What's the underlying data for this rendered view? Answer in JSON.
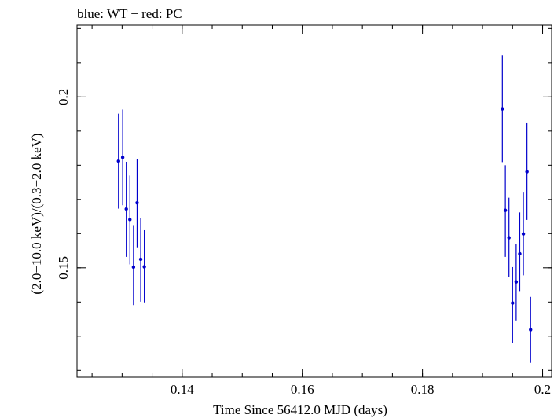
{
  "chart_data": {
    "type": "scatter",
    "title": "blue: WT − red: PC",
    "xlabel": "Time Since 56412.0 MJD (days)",
    "ylabel": "(2.0−10.0 keV)/(0.3−2.0 keV)",
    "xlim": [
      0.1225,
      0.2015
    ],
    "ylim": [
      0.118,
      0.221
    ],
    "xticks": [
      0.14,
      0.16,
      0.18,
      0.2
    ],
    "xtick_labels": [
      "0.14",
      "0.16",
      "0.18",
      "0.2"
    ],
    "yticks": [
      0.15,
      0.2
    ],
    "ytick_labels": [
      "0.15",
      "0.2"
    ],
    "grid": false,
    "series": [
      {
        "color": "#0000cc",
        "points": [
          {
            "x": 0.1294,
            "y": 0.1812,
            "ylo": 0.1673,
            "yhi": 0.1951
          },
          {
            "x": 0.1301,
            "y": 0.1823,
            "ylo": 0.1683,
            "yhi": 0.1963
          },
          {
            "x": 0.1307,
            "y": 0.1672,
            "ylo": 0.1532,
            "yhi": 0.181
          },
          {
            "x": 0.1313,
            "y": 0.1641,
            "ylo": 0.151,
            "yhi": 0.177
          },
          {
            "x": 0.1319,
            "y": 0.1502,
            "ylo": 0.1391,
            "yhi": 0.1625
          },
          {
            "x": 0.1325,
            "y": 0.169,
            "ylo": 0.156,
            "yhi": 0.1819
          },
          {
            "x": 0.1331,
            "y": 0.1525,
            "ylo": 0.1401,
            "yhi": 0.1646
          },
          {
            "x": 0.1337,
            "y": 0.1503,
            "ylo": 0.1399,
            "yhi": 0.161
          },
          {
            "x": 0.1933,
            "y": 0.1965,
            "ylo": 0.1809,
            "yhi": 0.2122
          },
          {
            "x": 0.1938,
            "y": 0.1668,
            "ylo": 0.1532,
            "yhi": 0.18
          },
          {
            "x": 0.1944,
            "y": 0.1588,
            "ylo": 0.1472,
            "yhi": 0.1705
          },
          {
            "x": 0.195,
            "y": 0.1397,
            "ylo": 0.128,
            "yhi": 0.1502
          },
          {
            "x": 0.1956,
            "y": 0.1459,
            "ylo": 0.1346,
            "yhi": 0.157
          },
          {
            "x": 0.1962,
            "y": 0.1541,
            "ylo": 0.1432,
            "yhi": 0.1662
          },
          {
            "x": 0.1968,
            "y": 0.1599,
            "ylo": 0.1478,
            "yhi": 0.172
          },
          {
            "x": 0.1974,
            "y": 0.1781,
            "ylo": 0.164,
            "yhi": 0.1925
          },
          {
            "x": 0.198,
            "y": 0.1319,
            "ylo": 0.1222,
            "yhi": 0.1415
          }
        ]
      }
    ]
  }
}
